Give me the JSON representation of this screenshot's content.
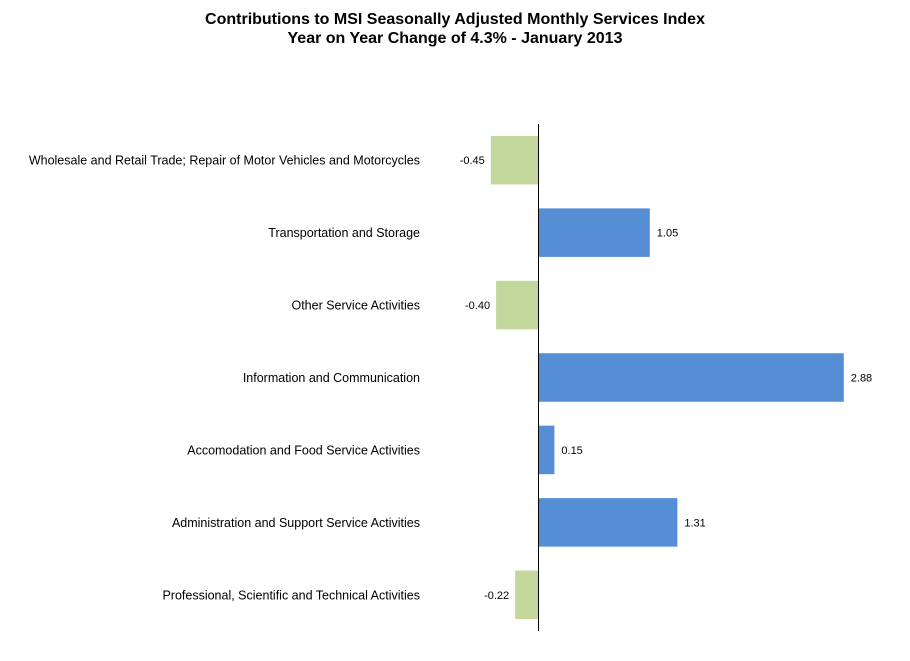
{
  "chart_data": {
    "type": "bar",
    "orientation": "horizontal",
    "title": "Contributions to MSI  Seasonally Adjusted Monthly Services Index",
    "subtitle": "Year on Year Change of 4.3% - January 2013",
    "categories": [
      "Wholesale and Retail Trade; Repair of Motor Vehicles and Motorcycles",
      "Transportation and Storage",
      "Other Service Activities",
      "Information and Communication",
      "Accomodation and Food Service Activities",
      "Administration and Support Service Activities",
      "Professional, Scientific and Technical Activities"
    ],
    "values": [
      -0.45,
      1.05,
      -0.4,
      2.88,
      0.15,
      1.31,
      -0.22
    ],
    "value_labels": [
      "-0.45",
      "1.05",
      "-0.40",
      "2.88",
      "0.15",
      "1.31",
      "-0.22"
    ],
    "colors": {
      "positive": "#558ED5",
      "negative": "#C3D69B"
    },
    "xlim": [
      -0.5,
      3.0
    ],
    "grid": false,
    "legend": "none"
  }
}
